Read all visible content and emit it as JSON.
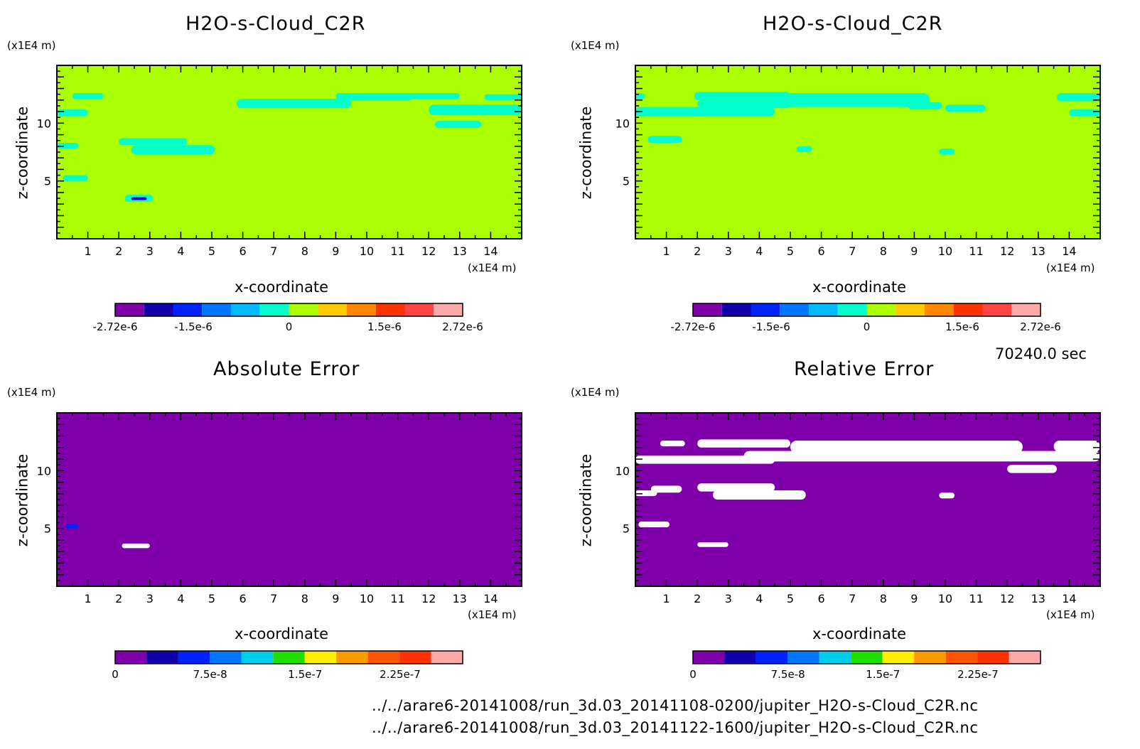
{
  "units": {
    "y_unit": "(x1E4 m)",
    "x_unit": "(x1E4 m)"
  },
  "axis_labels": {
    "x": "x-coordinate",
    "z": "z-coordinate"
  },
  "time_label": "70240.0 sec",
  "file_paths": [
    "../../arare6-20141008/run_3d.03_20141108-0200/jupiter_H2O-s-Cloud_C2R.nc",
    "../../arare6-20141008/run_3d.03_20141122-1600/jupiter_H2O-s-Cloud_C2R.nc"
  ],
  "colors": {
    "background_field": "#aaff00",
    "cloud": "#00ffcc",
    "error_field": "#7f00aa",
    "hole": "#ffffff"
  },
  "chart_data": [
    {
      "type": "heatmap",
      "title": "H2O-s-Cloud_C2R",
      "xlabel": "x-coordinate",
      "ylabel": "z-coordinate",
      "x_ticks": [
        1,
        2,
        3,
        4,
        5,
        6,
        7,
        8,
        9,
        10,
        11,
        12,
        13,
        14
      ],
      "y_ticks": [
        5,
        10
      ],
      "xlim": [
        0,
        15
      ],
      "ylim": [
        0,
        15
      ],
      "background": "#aaff00",
      "patches": [
        {
          "color": "#00ffcc",
          "x": [
            0.5,
            1.5
          ],
          "z": [
            12.1,
            12.6
          ]
        },
        {
          "color": "#00ffcc",
          "x": [
            0,
            1.0
          ],
          "z": [
            10.6,
            11.2
          ]
        },
        {
          "color": "#00ffcc",
          "x": [
            0,
            0.7
          ],
          "z": [
            7.8,
            8.3
          ]
        },
        {
          "color": "#00ffcc",
          "x": [
            0.2,
            1.0
          ],
          "z": [
            5.0,
            5.5
          ]
        },
        {
          "color": "#00ffcc",
          "x": [
            2.0,
            4.2
          ],
          "z": [
            8.1,
            8.7
          ]
        },
        {
          "color": "#00ffcc",
          "x": [
            2.4,
            5.1
          ],
          "z": [
            7.3,
            8.1
          ]
        },
        {
          "color": "#00ffcc",
          "x": [
            2.2,
            3.1
          ],
          "z": [
            3.2,
            3.8
          ]
        },
        {
          "color": "#2200cc",
          "x": [
            2.4,
            2.9
          ],
          "z": [
            3.35,
            3.6
          ]
        },
        {
          "color": "#00ffcc",
          "x": [
            5.8,
            9.5
          ],
          "z": [
            11.3,
            12.1
          ]
        },
        {
          "color": "#00ffcc",
          "x": [
            9.0,
            11.5
          ],
          "z": [
            12.0,
            12.6
          ]
        },
        {
          "color": "#00ffcc",
          "x": [
            11.2,
            13.0
          ],
          "z": [
            12.1,
            12.6
          ]
        },
        {
          "color": "#00ffcc",
          "x": [
            12.0,
            15.0
          ],
          "z": [
            10.7,
            11.6
          ]
        },
        {
          "color": "#00ffcc",
          "x": [
            12.2,
            13.7
          ],
          "z": [
            9.6,
            10.2
          ]
        },
        {
          "color": "#00ffcc",
          "x": [
            13.8,
            15.0
          ],
          "z": [
            12.0,
            12.5
          ]
        }
      ],
      "colorbar": {
        "colors": [
          "#7f00aa",
          "#1100aa",
          "#0022ff",
          "#0077ff",
          "#00bbff",
          "#00ffcc",
          "#aaff00",
          "#ffcc00",
          "#ff8800",
          "#ff3300",
          "#ff4444",
          "#ffaaaa"
        ],
        "tick_labels": [
          "-2.72e-6",
          "-1.5e-6",
          "0",
          "1.5e-6",
          "2.72e-6"
        ]
      }
    },
    {
      "type": "heatmap",
      "title": "H2O-s-Cloud_C2R",
      "xlabel": "x-coordinate",
      "ylabel": "z-coordinate",
      "x_ticks": [
        1,
        2,
        3,
        4,
        5,
        6,
        7,
        8,
        9,
        10,
        11,
        12,
        13,
        14
      ],
      "y_ticks": [
        5,
        10
      ],
      "xlim": [
        0,
        15
      ],
      "ylim": [
        0,
        15
      ],
      "background": "#aaff00",
      "patches": [
        {
          "color": "#00ffcc",
          "x": [
            0,
            0.3
          ],
          "z": [
            12.0,
            12.6
          ]
        },
        {
          "color": "#00ffcc",
          "x": [
            0,
            4.5
          ],
          "z": [
            10.6,
            11.4
          ]
        },
        {
          "color": "#00ffcc",
          "x": [
            2.0,
            5.0
          ],
          "z": [
            11.3,
            12.0
          ]
        },
        {
          "color": "#00ffcc",
          "x": [
            1.9,
            5.0
          ],
          "z": [
            12.0,
            12.7
          ]
        },
        {
          "color": "#00ffcc",
          "x": [
            4.5,
            9.5
          ],
          "z": [
            11.4,
            12.6
          ]
        },
        {
          "color": "#00ffcc",
          "x": [
            8.8,
            9.9
          ],
          "z": [
            11.2,
            11.8
          ]
        },
        {
          "color": "#00ffcc",
          "x": [
            10.0,
            11.3
          ],
          "z": [
            11.0,
            11.6
          ]
        },
        {
          "color": "#00ffcc",
          "x": [
            0.4,
            1.5
          ],
          "z": [
            8.3,
            8.9
          ]
        },
        {
          "color": "#00ffcc",
          "x": [
            5.2,
            5.7
          ],
          "z": [
            7.5,
            8.0
          ]
        },
        {
          "color": "#00ffcc",
          "x": [
            9.8,
            10.3
          ],
          "z": [
            7.3,
            7.8
          ]
        },
        {
          "color": "#00ffcc",
          "x": [
            13.6,
            15.0
          ],
          "z": [
            11.9,
            12.6
          ]
        },
        {
          "color": "#00ffcc",
          "x": [
            14.0,
            15.0
          ],
          "z": [
            10.6,
            11.2
          ]
        }
      ],
      "colorbar": {
        "colors": [
          "#7f00aa",
          "#1100aa",
          "#0022ff",
          "#0077ff",
          "#00bbff",
          "#00ffcc",
          "#aaff00",
          "#ffcc00",
          "#ff8800",
          "#ff3300",
          "#ff4444",
          "#ffaaaa"
        ],
        "tick_labels": [
          "-2.72e-6",
          "-1.5e-6",
          "0",
          "1.5e-6",
          "2.72e-6"
        ]
      }
    },
    {
      "type": "heatmap",
      "title": "Absolute Error",
      "xlabel": "x-coordinate",
      "ylabel": "z-coordinate",
      "x_ticks": [
        1,
        2,
        3,
        4,
        5,
        6,
        7,
        8,
        9,
        10,
        11,
        12,
        13,
        14
      ],
      "y_ticks": [
        5,
        10
      ],
      "xlim": [
        0,
        15
      ],
      "ylim": [
        0,
        15
      ],
      "background": "#7f00aa",
      "patches": [
        {
          "color": "#0022ff",
          "x": [
            0.3,
            0.7
          ],
          "z": [
            5.0,
            5.4
          ]
        },
        {
          "color": "#ffffff",
          "x": [
            2.1,
            3.0
          ],
          "z": [
            3.3,
            3.7
          ]
        }
      ],
      "colorbar": {
        "colors": [
          "#7f00aa",
          "#1100aa",
          "#0022ff",
          "#0077ff",
          "#00ccee",
          "#22dd00",
          "#ffee00",
          "#ff9900",
          "#ff5500",
          "#ff3300",
          "#ffaaaa"
        ],
        "tick_labels": [
          "0",
          "7.5e-8",
          "1.5e-7",
          "2.25e-7"
        ]
      }
    },
    {
      "type": "heatmap",
      "title": "Relative Error",
      "xlabel": "x-coordinate",
      "ylabel": "z-coordinate",
      "x_ticks": [
        1,
        2,
        3,
        4,
        5,
        6,
        7,
        8,
        9,
        10,
        11,
        12,
        13,
        14
      ],
      "y_ticks": [
        5,
        10
      ],
      "xlim": [
        0,
        15
      ],
      "ylim": [
        0,
        15
      ],
      "background": "#7f00aa",
      "patches": [
        {
          "color": "#ffffff",
          "x": [
            0,
            4.5
          ],
          "z": [
            10.6,
            11.3
          ]
        },
        {
          "color": "#ffffff",
          "x": [
            0.8,
            1.6
          ],
          "z": [
            12.1,
            12.6
          ]
        },
        {
          "color": "#ffffff",
          "x": [
            2.0,
            5.0
          ],
          "z": [
            12.0,
            12.7
          ]
        },
        {
          "color": "#ffffff",
          "x": [
            3.5,
            15.0
          ],
          "z": [
            10.8,
            11.7
          ]
        },
        {
          "color": "#ffffff",
          "x": [
            5.0,
            12.5
          ],
          "z": [
            11.5,
            12.6
          ]
        },
        {
          "color": "#ffffff",
          "x": [
            13.5,
            15.0
          ],
          "z": [
            11.6,
            12.6
          ]
        },
        {
          "color": "#ffffff",
          "x": [
            12.0,
            13.6
          ],
          "z": [
            9.8,
            10.5
          ]
        },
        {
          "color": "#ffffff",
          "x": [
            0.5,
            1.5
          ],
          "z": [
            8.1,
            8.7
          ]
        },
        {
          "color": "#ffffff",
          "x": [
            0,
            0.7
          ],
          "z": [
            7.8,
            8.3
          ]
        },
        {
          "color": "#ffffff",
          "x": [
            2.0,
            4.5
          ],
          "z": [
            8.2,
            8.9
          ]
        },
        {
          "color": "#ffffff",
          "x": [
            2.5,
            5.5
          ],
          "z": [
            7.5,
            8.3
          ]
        },
        {
          "color": "#ffffff",
          "x": [
            0.1,
            1.1
          ],
          "z": [
            5.1,
            5.6
          ]
        },
        {
          "color": "#ffffff",
          "x": [
            2.0,
            3.0
          ],
          "z": [
            3.4,
            3.8
          ]
        },
        {
          "color": "#ffffff",
          "x": [
            9.8,
            10.3
          ],
          "z": [
            7.6,
            8.1
          ]
        }
      ],
      "colorbar": {
        "colors": [
          "#7f00aa",
          "#1100aa",
          "#0022ff",
          "#0077ff",
          "#00ccee",
          "#22dd00",
          "#ffee00",
          "#ff9900",
          "#ff5500",
          "#ff3300",
          "#ffaaaa"
        ],
        "tick_labels": [
          "0",
          "7.5e-8",
          "1.5e-7",
          "2.25e-7"
        ]
      }
    }
  ]
}
